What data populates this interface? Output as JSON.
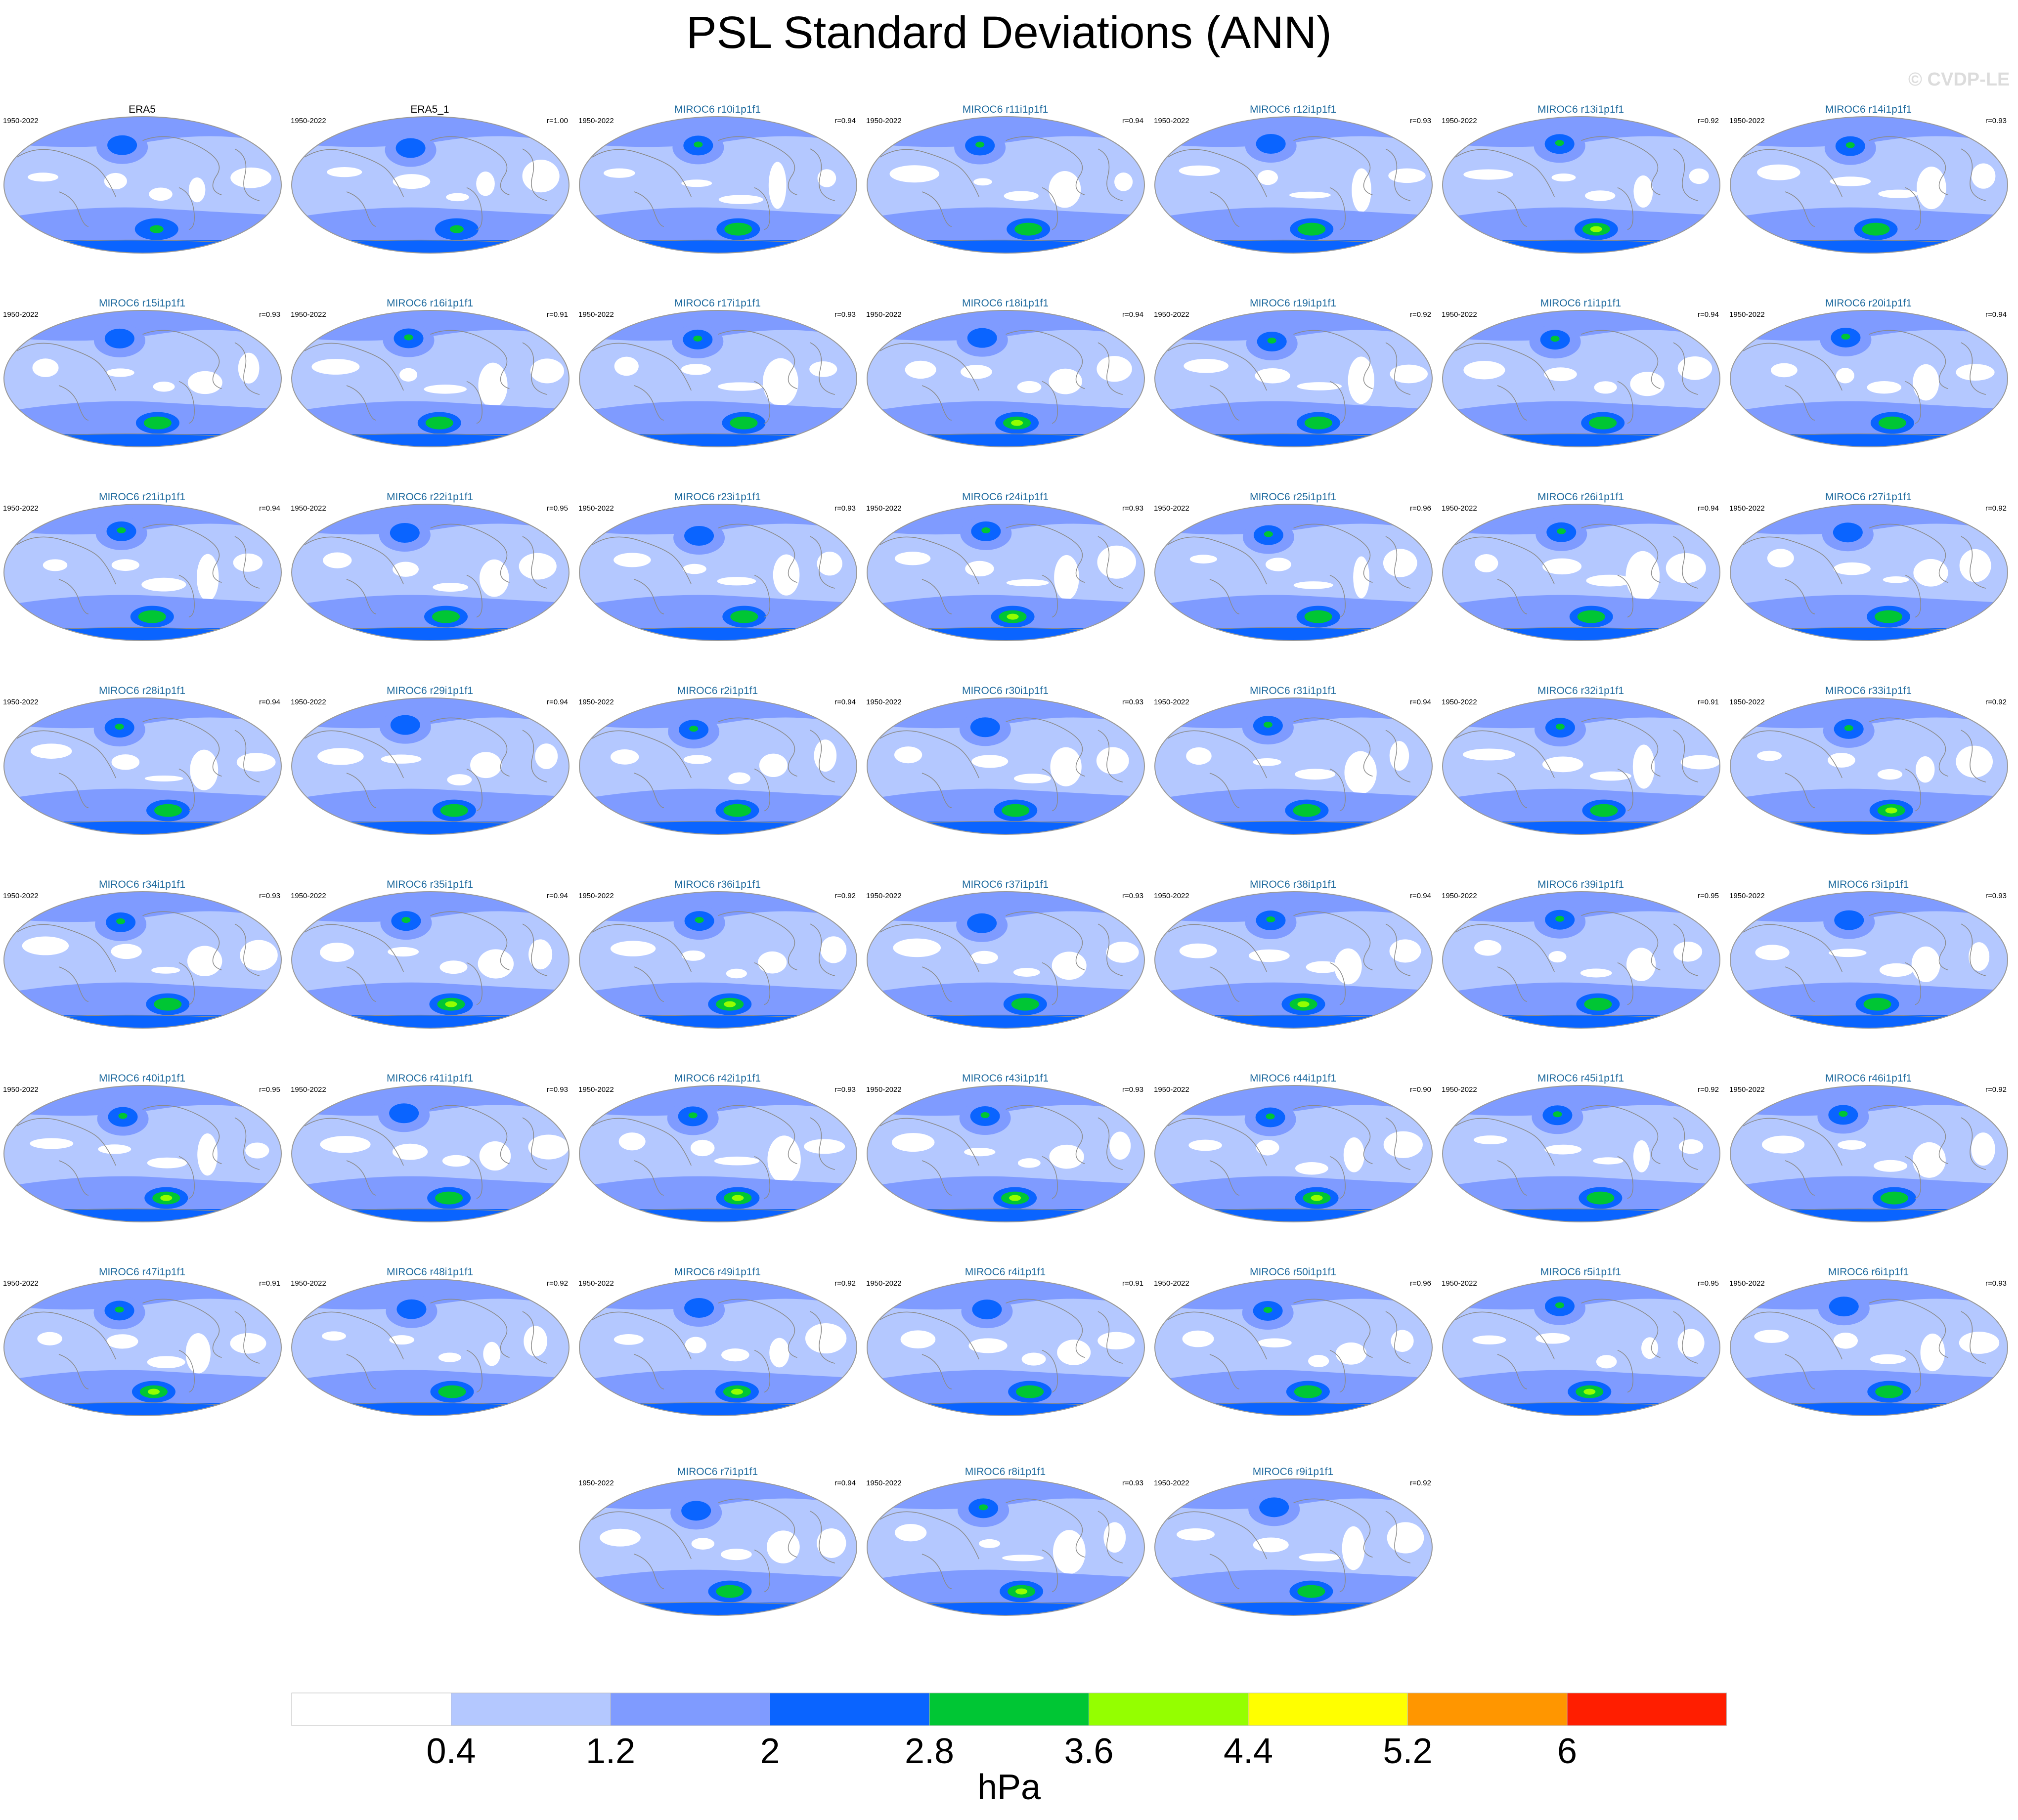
{
  "title": "PSL Standard Deviations (ANN)",
  "watermark": "© CVDP-LE",
  "period": "1950-2022",
  "chart_data": {
    "type": "contour-map-panels",
    "variable": "PSL",
    "statistic": "Standard Deviation",
    "season": "ANN",
    "units": "hPa",
    "colorbar": {
      "levels": [
        0.4,
        1.2,
        2,
        2.8,
        3.6,
        4.4,
        5.2,
        6
      ],
      "tick_labels": [
        "0.4",
        "1.2",
        "2",
        "2.8",
        "3.6",
        "4.4",
        "5.2",
        "6"
      ],
      "colors": [
        "#ffffff",
        "#b4c8ff",
        "#7f9bff",
        "#0a64ff",
        "#00c634",
        "#94ff00",
        "#ffff00",
        "#ff9600",
        "#ff1e00"
      ]
    },
    "panels": [
      {
        "name": "ERA5",
        "period": "1950-2022",
        "corr": "",
        "obs": true
      },
      {
        "name": "ERA5_1",
        "period": "1950-2022",
        "corr": "r=1.00",
        "obs": true
      },
      {
        "name": "MIROC6 r10i1p1f1",
        "period": "1950-2022",
        "corr": "r=0.94"
      },
      {
        "name": "MIROC6 r11i1p1f1",
        "period": "1950-2022",
        "corr": "r=0.94"
      },
      {
        "name": "MIROC6 r12i1p1f1",
        "period": "1950-2022",
        "corr": "r=0.93"
      },
      {
        "name": "MIROC6 r13i1p1f1",
        "period": "1950-2022",
        "corr": "r=0.92"
      },
      {
        "name": "MIROC6 r14i1p1f1",
        "period": "1950-2022",
        "corr": "r=0.93"
      },
      {
        "name": "MIROC6 r15i1p1f1",
        "period": "1950-2022",
        "corr": "r=0.93"
      },
      {
        "name": "MIROC6 r16i1p1f1",
        "period": "1950-2022",
        "corr": "r=0.91"
      },
      {
        "name": "MIROC6 r17i1p1f1",
        "period": "1950-2022",
        "corr": "r=0.93"
      },
      {
        "name": "MIROC6 r18i1p1f1",
        "period": "1950-2022",
        "corr": "r=0.94"
      },
      {
        "name": "MIROC6 r19i1p1f1",
        "period": "1950-2022",
        "corr": "r=0.92"
      },
      {
        "name": "MIROC6 r1i1p1f1",
        "period": "1950-2022",
        "corr": "r=0.94"
      },
      {
        "name": "MIROC6 r20i1p1f1",
        "period": "1950-2022",
        "corr": "r=0.94"
      },
      {
        "name": "MIROC6 r21i1p1f1",
        "period": "1950-2022",
        "corr": "r=0.94"
      },
      {
        "name": "MIROC6 r22i1p1f1",
        "period": "1950-2022",
        "corr": "r=0.95"
      },
      {
        "name": "MIROC6 r23i1p1f1",
        "period": "1950-2022",
        "corr": "r=0.93"
      },
      {
        "name": "MIROC6 r24i1p1f1",
        "period": "1950-2022",
        "corr": "r=0.93"
      },
      {
        "name": "MIROC6 r25i1p1f1",
        "period": "1950-2022",
        "corr": "r=0.96"
      },
      {
        "name": "MIROC6 r26i1p1f1",
        "period": "1950-2022",
        "corr": "r=0.94"
      },
      {
        "name": "MIROC6 r27i1p1f1",
        "period": "1950-2022",
        "corr": "r=0.92"
      },
      {
        "name": "MIROC6 r28i1p1f1",
        "period": "1950-2022",
        "corr": "r=0.94"
      },
      {
        "name": "MIROC6 r29i1p1f1",
        "period": "1950-2022",
        "corr": "r=0.94"
      },
      {
        "name": "MIROC6 r2i1p1f1",
        "period": "1950-2022",
        "corr": "r=0.94"
      },
      {
        "name": "MIROC6 r30i1p1f1",
        "period": "1950-2022",
        "corr": "r=0.93"
      },
      {
        "name": "MIROC6 r31i1p1f1",
        "period": "1950-2022",
        "corr": "r=0.94"
      },
      {
        "name": "MIROC6 r32i1p1f1",
        "period": "1950-2022",
        "corr": "r=0.91"
      },
      {
        "name": "MIROC6 r33i1p1f1",
        "period": "1950-2022",
        "corr": "r=0.92"
      },
      {
        "name": "MIROC6 r34i1p1f1",
        "period": "1950-2022",
        "corr": "r=0.93"
      },
      {
        "name": "MIROC6 r35i1p1f1",
        "period": "1950-2022",
        "corr": "r=0.94"
      },
      {
        "name": "MIROC6 r36i1p1f1",
        "period": "1950-2022",
        "corr": "r=0.92"
      },
      {
        "name": "MIROC6 r37i1p1f1",
        "period": "1950-2022",
        "corr": "r=0.93"
      },
      {
        "name": "MIROC6 r38i1p1f1",
        "period": "1950-2022",
        "corr": "r=0.94"
      },
      {
        "name": "MIROC6 r39i1p1f1",
        "period": "1950-2022",
        "corr": "r=0.95"
      },
      {
        "name": "MIROC6 r3i1p1f1",
        "period": "1950-2022",
        "corr": "r=0.93"
      },
      {
        "name": "MIROC6 r40i1p1f1",
        "period": "1950-2022",
        "corr": "r=0.95"
      },
      {
        "name": "MIROC6 r41i1p1f1",
        "period": "1950-2022",
        "corr": "r=0.93"
      },
      {
        "name": "MIROC6 r42i1p1f1",
        "period": "1950-2022",
        "corr": "r=0.93"
      },
      {
        "name": "MIROC6 r43i1p1f1",
        "period": "1950-2022",
        "corr": "r=0.93"
      },
      {
        "name": "MIROC6 r44i1p1f1",
        "period": "1950-2022",
        "corr": "r=0.90"
      },
      {
        "name": "MIROC6 r45i1p1f1",
        "period": "1950-2022",
        "corr": "r=0.92"
      },
      {
        "name": "MIROC6 r46i1p1f1",
        "period": "1950-2022",
        "corr": "r=0.92"
      },
      {
        "name": "MIROC6 r47i1p1f1",
        "period": "1950-2022",
        "corr": "r=0.91"
      },
      {
        "name": "MIROC6 r48i1p1f1",
        "period": "1950-2022",
        "corr": "r=0.92"
      },
      {
        "name": "MIROC6 r49i1p1f1",
        "period": "1950-2022",
        "corr": "r=0.92"
      },
      {
        "name": "MIROC6 r4i1p1f1",
        "period": "1950-2022",
        "corr": "r=0.91"
      },
      {
        "name": "MIROC6 r50i1p1f1",
        "period": "1950-2022",
        "corr": "r=0.96"
      },
      {
        "name": "MIROC6 r5i1p1f1",
        "period": "1950-2022",
        "corr": "r=0.95"
      },
      {
        "name": "MIROC6 r6i1p1f1",
        "period": "1950-2022",
        "corr": "r=0.93"
      },
      {
        "name": "MIROC6 r7i1p1f1",
        "period": "1950-2022",
        "corr": "r=0.94"
      },
      {
        "name": "MIROC6 r8i1p1f1",
        "period": "1950-2022",
        "corr": "r=0.93"
      },
      {
        "name": "MIROC6 r9i1p1f1",
        "period": "1950-2022",
        "corr": "r=0.92"
      }
    ]
  }
}
